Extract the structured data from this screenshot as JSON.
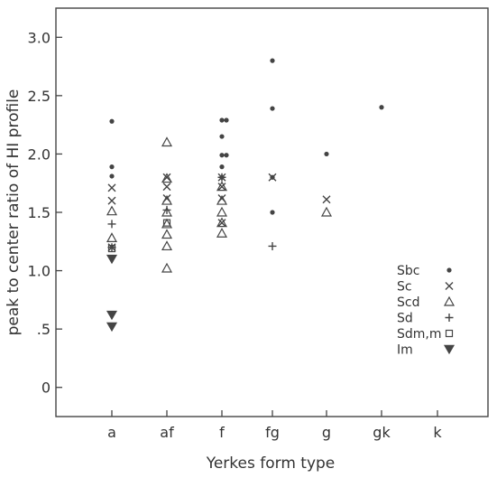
{
  "chart_data": {
    "type": "scatter",
    "xlabel": "Yerkes form type",
    "ylabel": "peak to center ratio of HI profile",
    "categories": [
      "a",
      "af",
      "f",
      "fg",
      "g",
      "gk",
      "k"
    ],
    "ylim": [
      -0.25,
      3.25
    ],
    "y_ticks": [
      {
        "value": 0,
        "label": "0"
      },
      {
        "value": 0.5,
        "label": ".5"
      },
      {
        "value": 1.0,
        "label": "1.0"
      },
      {
        "value": 1.5,
        "label": "1.5"
      },
      {
        "value": 2.0,
        "label": "2.0"
      },
      {
        "value": 2.5,
        "label": "2.5"
      },
      {
        "value": 3.0,
        "label": "3.0"
      }
    ],
    "grid": false,
    "legend_position": "right",
    "series": [
      {
        "name": "Sbc",
        "marker": "dot",
        "points": [
          [
            "a",
            2.28
          ],
          [
            "a",
            1.89
          ],
          [
            "a",
            1.81
          ],
          [
            "f",
            2.29
          ],
          [
            "f",
            2.29
          ],
          [
            "f",
            2.15
          ],
          [
            "f",
            1.99
          ],
          [
            "f",
            1.99
          ],
          [
            "f",
            1.89
          ],
          [
            "f",
            1.8
          ],
          [
            "fg",
            2.8
          ],
          [
            "fg",
            2.39
          ],
          [
            "fg",
            1.8
          ],
          [
            "fg",
            1.5
          ],
          [
            "g",
            2.0
          ],
          [
            "gk",
            2.4
          ]
        ]
      },
      {
        "name": "Sc",
        "marker": "x",
        "points": [
          [
            "a",
            1.71
          ],
          [
            "a",
            1.6
          ],
          [
            "a",
            1.2
          ],
          [
            "af",
            1.8
          ],
          [
            "af",
            1.72
          ],
          [
            "af",
            1.62
          ],
          [
            "f",
            1.8
          ],
          [
            "f",
            1.72
          ],
          [
            "f",
            1.62
          ],
          [
            "f",
            1.41
          ],
          [
            "fg",
            1.8
          ],
          [
            "g",
            1.61
          ]
        ]
      },
      {
        "name": "Scd",
        "marker": "triangle-open",
        "points": [
          [
            "a",
            1.51
          ],
          [
            "a",
            1.28
          ],
          [
            "af",
            2.1
          ],
          [
            "af",
            1.79
          ],
          [
            "af",
            1.6
          ],
          [
            "af",
            1.5
          ],
          [
            "af",
            1.4
          ],
          [
            "af",
            1.31
          ],
          [
            "af",
            1.21
          ],
          [
            "af",
            1.02
          ],
          [
            "f",
            1.72
          ],
          [
            "f",
            1.6
          ],
          [
            "f",
            1.5
          ],
          [
            "f",
            1.41
          ],
          [
            "f",
            1.32
          ],
          [
            "g",
            1.5
          ]
        ]
      },
      {
        "name": "Sd",
        "marker": "plus",
        "points": [
          [
            "a",
            1.4
          ],
          [
            "a",
            1.2
          ],
          [
            "af",
            1.52
          ],
          [
            "f",
            1.8
          ],
          [
            "fg",
            1.21
          ]
        ]
      },
      {
        "name": "Sdm,m",
        "marker": "square-open",
        "points": [
          [
            "a",
            1.19
          ],
          [
            "af",
            1.41
          ]
        ]
      },
      {
        "name": "Im",
        "marker": "triangle-down-filled",
        "points": [
          [
            "a",
            1.1
          ],
          [
            "a",
            0.62
          ],
          [
            "a",
            0.52
          ]
        ]
      }
    ]
  }
}
